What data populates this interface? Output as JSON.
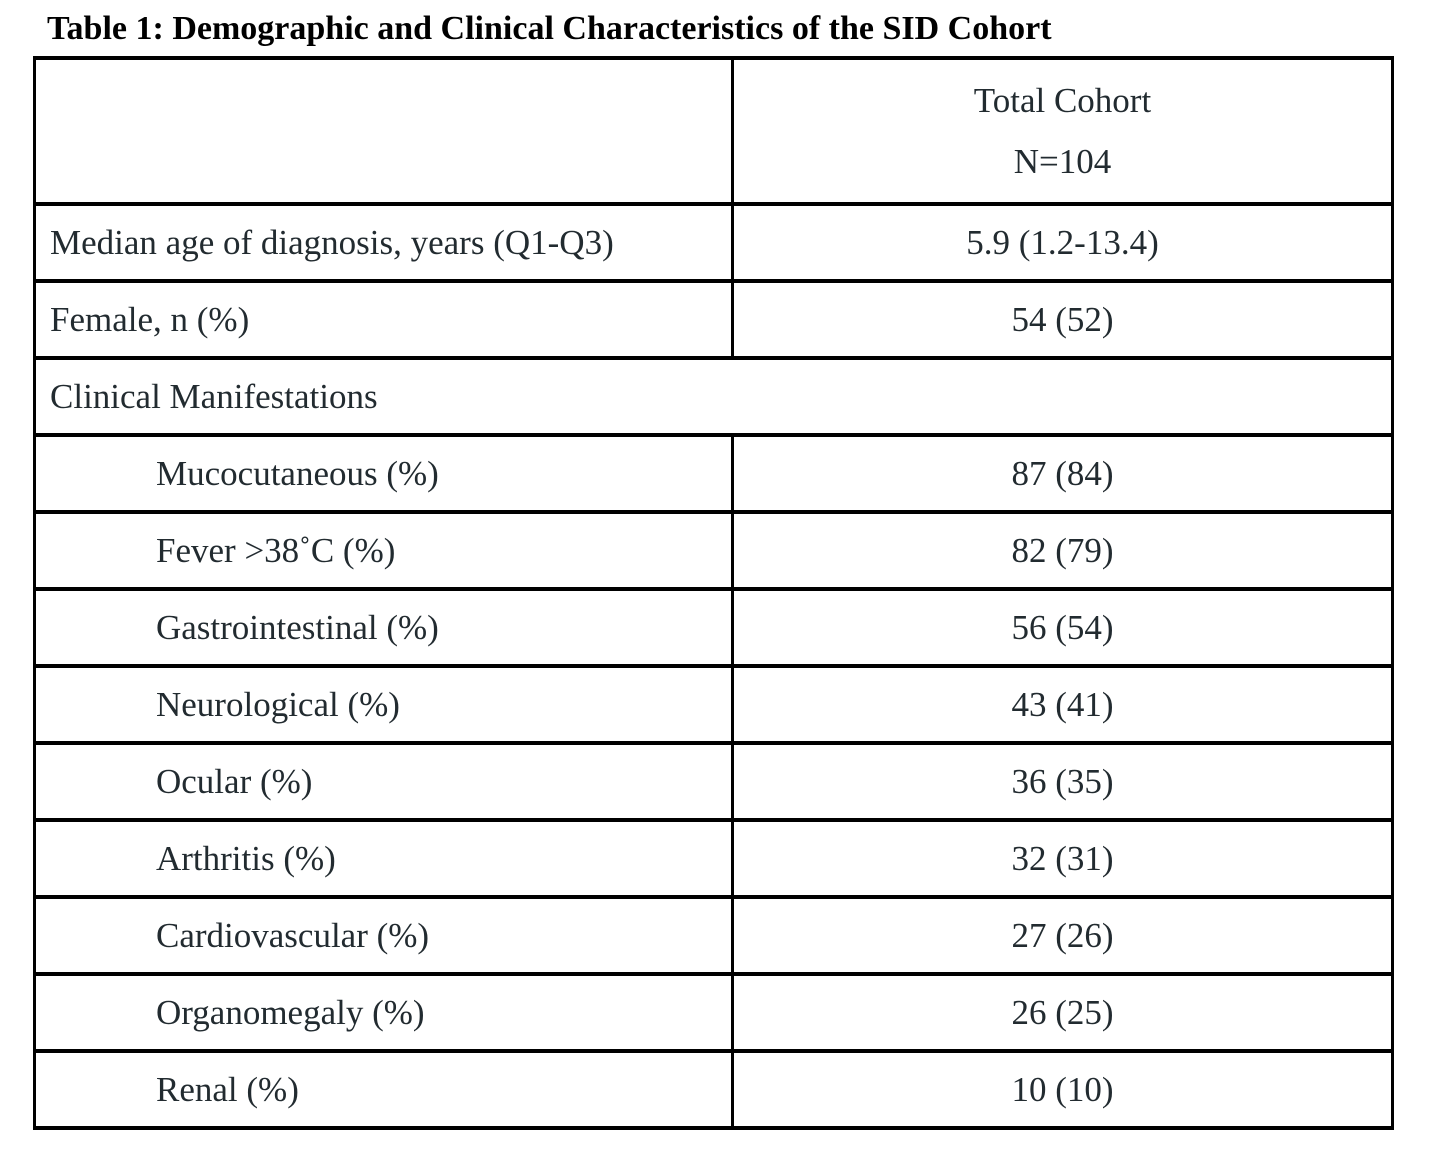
{
  "title": "Table 1: Demographic and Clinical Characteristics of the SID Cohort",
  "table": {
    "header": {
      "line1": "Total Cohort",
      "line2": "N=104"
    },
    "rows": [
      {
        "label": "Median age of diagnosis, years (Q1-Q3)",
        "value": "5.9 (1.2-13.4)"
      },
      {
        "label": "Female, n (%)",
        "value": "54 (52)"
      },
      {
        "label": "Clinical Manifestations",
        "value": ""
      },
      {
        "label": "Mucocutaneous (%)",
        "value": "87 (84)"
      },
      {
        "label": "Fever >38˚C (%)",
        "value": "82 (79)"
      },
      {
        "label": "Gastrointestinal (%)",
        "value": "56 (54)"
      },
      {
        "label": "Neurological (%)",
        "value": "43 (41)"
      },
      {
        "label": "Ocular (%)",
        "value": "36 (35)"
      },
      {
        "label": "Arthritis (%)",
        "value": "32 (31)"
      },
      {
        "label": "Cardiovascular (%)",
        "value": "27 (26)"
      },
      {
        "label": "Organomegaly (%)",
        "value": "26 (25)"
      },
      {
        "label": "Renal (%)",
        "value": "10 (10)"
      }
    ],
    "colors": {
      "border": "#000000",
      "text": "#222b30",
      "title_text": "#000000",
      "background": "#ffffff"
    }
  }
}
